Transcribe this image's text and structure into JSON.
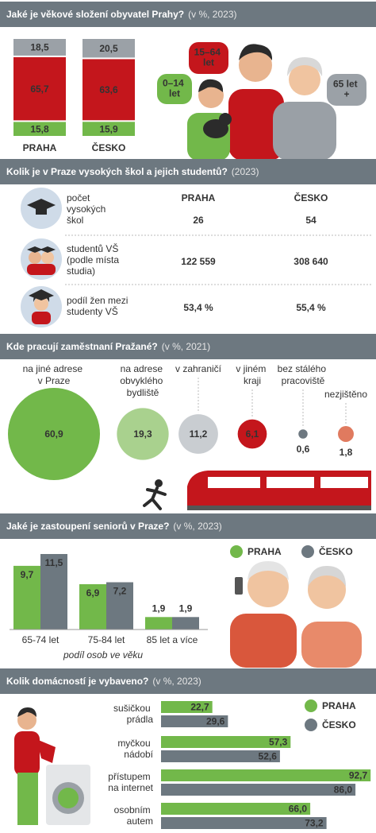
{
  "chart_data": [
    {
      "type": "stacked_bar",
      "title": "Jaké je věkové složení obyvatel Prahy?",
      "title_note": "(v %, 2023)",
      "categories": [
        "PRAHA",
        "ČESKO"
      ],
      "series": [
        {
          "name": "0–14 let",
          "color": "#72b84a",
          "values": [
            15.8,
            15.9
          ],
          "value_labels": [
            "15,8",
            "15,9"
          ]
        },
        {
          "name": "15–64 let",
          "color": "#c4161c",
          "values": [
            65.7,
            63.6
          ],
          "value_labels": [
            "65,7",
            "63,6"
          ]
        },
        {
          "name": "65 let +",
          "color": "#9ba1a7",
          "values": [
            18.5,
            20.5
          ],
          "value_labels": [
            "18,5",
            "20,5"
          ]
        }
      ]
    },
    {
      "type": "table",
      "title": "Kolik je v Praze vysokých škol a jejich studentů?",
      "title_note": "(2023)",
      "columns": [
        "PRAHA",
        "ČESKO"
      ],
      "rows": [
        {
          "label": "počet vysokých škol",
          "values": [
            "26",
            "54"
          ]
        },
        {
          "label": "studentů VŠ (podle místa studia)",
          "values": [
            "122 559",
            "308 640"
          ]
        },
        {
          "label": "podíl žen mezi studenty VŠ",
          "values": [
            "53,4 %",
            "55,4 %"
          ]
        }
      ]
    },
    {
      "type": "bubble",
      "title": "Kde pracují zaměstnaní Pražané?",
      "title_note": "(v %, 2021)",
      "categories": [
        "na jiné adrese v Praze",
        "na adrese obvyklého bydliště",
        "v zahraničí",
        "v jiném kraji",
        "bez stálého pracoviště",
        "nezjištěno"
      ],
      "values": [
        60.9,
        19.3,
        11.2,
        6.1,
        0.6,
        1.8
      ],
      "value_labels": [
        "60,9",
        "19,3",
        "11,2",
        "6,1",
        "0,6",
        "1,8"
      ],
      "colors": [
        "#72b84a",
        "#a9d18e",
        "#c9cdd1",
        "#c4161c",
        "#6d7880",
        "#e07a5f"
      ]
    },
    {
      "type": "bar",
      "title": "Jaké je zastoupení seniorů v Praze?",
      "title_note": "(v %, 2023)",
      "categories": [
        "65-74 let",
        "75-84 let",
        "85 let a více"
      ],
      "note": "podíl osob ve věku",
      "series": [
        {
          "name": "PRAHA",
          "color": "#72b84a",
          "values": [
            9.7,
            6.9,
            1.9
          ],
          "value_labels": [
            "9,7",
            "6,9",
            "1,9"
          ]
        },
        {
          "name": "ČESKO",
          "color": "#6d7880",
          "values": [
            11.5,
            7.2,
            1.9
          ],
          "value_labels": [
            "11,5",
            "7,2",
            "1,9"
          ]
        }
      ]
    },
    {
      "type": "hbar",
      "title": "Kolik domácností je vybaveno?",
      "title_note": "(v %, 2023)",
      "categories": [
        "sušičkou prádla",
        "myčkou nádobí",
        "přístupem na internet",
        "osobním autem"
      ],
      "series": [
        {
          "name": "PRAHA",
          "color": "#72b84a",
          "values": [
            22.7,
            57.3,
            92.7,
            66.0
          ],
          "value_labels": [
            "22,7",
            "57,3",
            "92,7",
            "66,0"
          ]
        },
        {
          "name": "ČESKO",
          "color": "#6d7880",
          "values": [
            29.6,
            52.6,
            86.0,
            73.2
          ],
          "value_labels": [
            "29,6",
            "52,6",
            "86,0",
            "73,2"
          ]
        }
      ]
    }
  ]
}
